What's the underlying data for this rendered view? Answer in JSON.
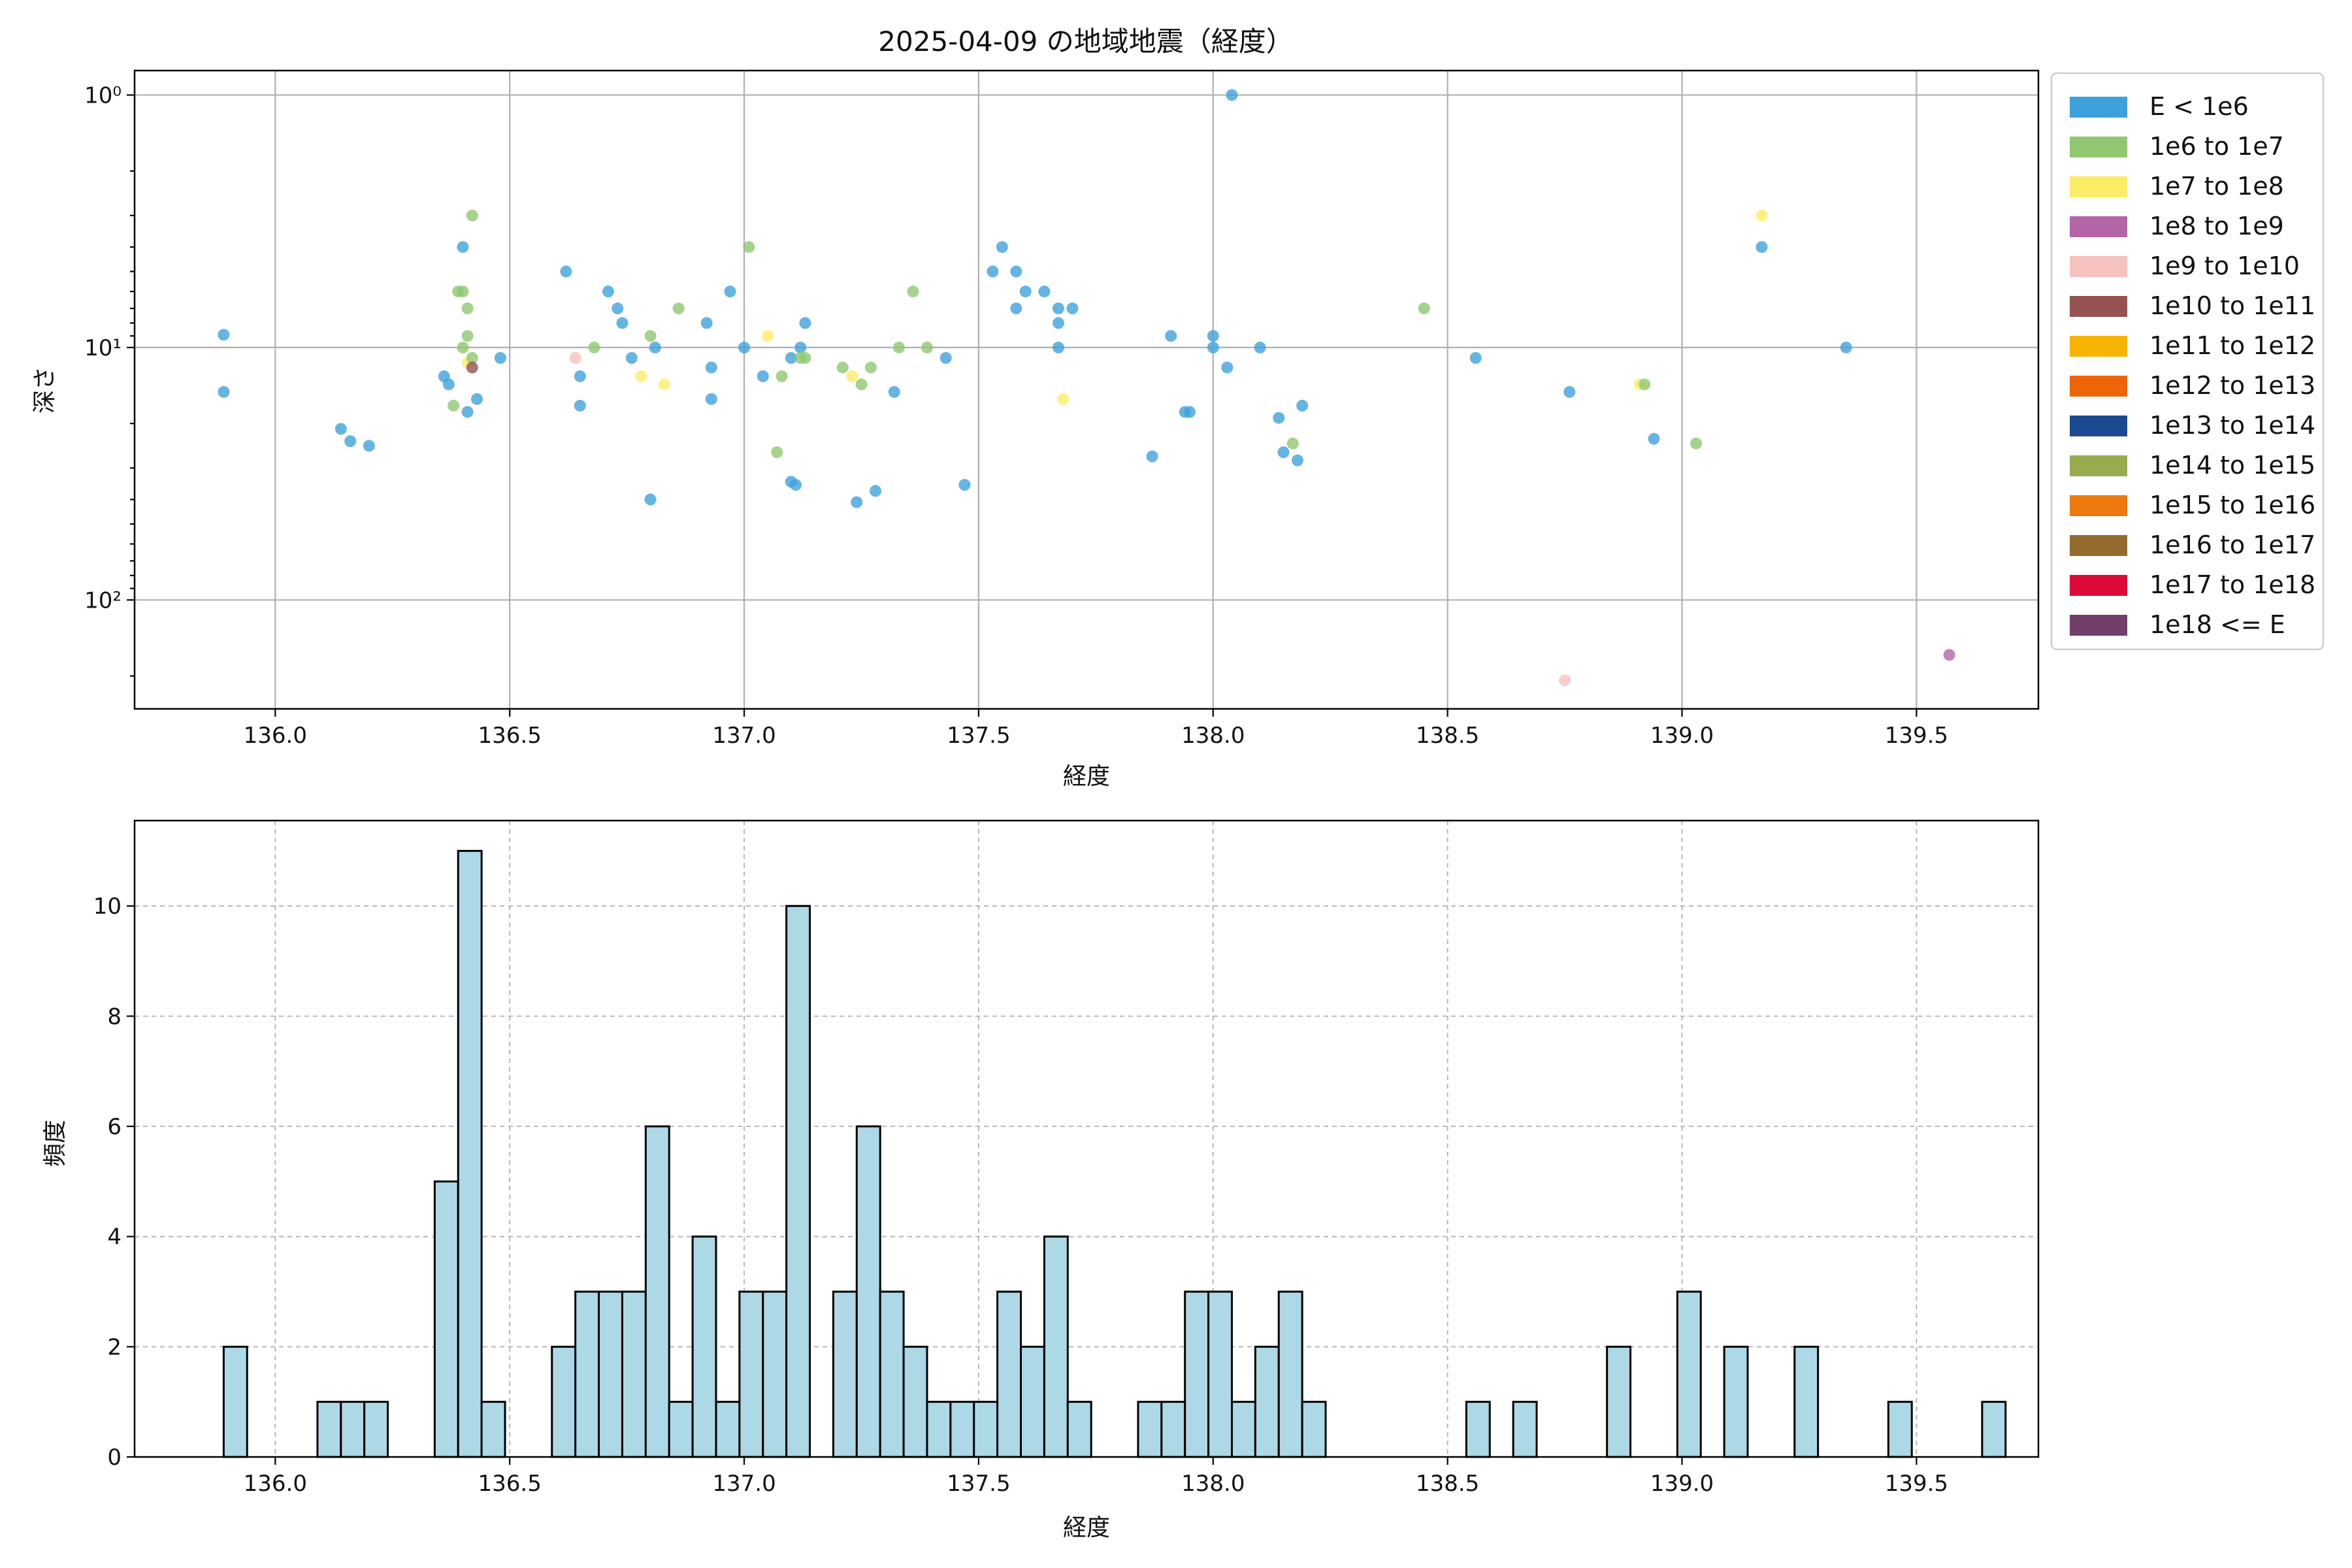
{
  "chart_data": [
    {
      "type": "scatter",
      "title": "2025-04-09 の地域地震（経度）",
      "xlabel": "経度",
      "ylabel": "深さ",
      "xlim": [
        135.7,
        139.76
      ],
      "ylim": [
        270,
        0.8
      ],
      "yscale": "log",
      "y_inverted": true,
      "grid": true,
      "x_ticks": [
        136.0,
        136.5,
        137.0,
        137.5,
        138.0,
        138.5,
        139.0,
        139.5
      ],
      "x_tick_labels": [
        "136.0",
        "136.5",
        "137.0",
        "137.5",
        "138.0",
        "138.5",
        "139.0",
        "139.5"
      ],
      "y_ticks": [
        1,
        10,
        100
      ],
      "y_tick_labels": [
        "10⁰",
        "10¹",
        "10²"
      ],
      "legend_position": "outside-right",
      "legend": [
        {
          "label": "E < 1e6",
          "color": "#3fa1db"
        },
        {
          "label": "1e6 to 1e7",
          "color": "#8fc870"
        },
        {
          "label": "1e7 to 1e8",
          "color": "#fced66"
        },
        {
          "label": "1e8 to 1e9",
          "color": "#b565a7"
        },
        {
          "label": "1e9 to 1e10",
          "color": "#f5c2bd"
        },
        {
          "label": "1e10 to 1e11",
          "color": "#955251"
        },
        {
          "label": "1e11 to 1e12",
          "color": "#f7b404"
        },
        {
          "label": "1e12 to 1e13",
          "color": "#ed6508"
        },
        {
          "label": "1e13 to 1e14",
          "color": "#1b4a91"
        },
        {
          "label": "1e14 to 1e15",
          "color": "#98ab4f"
        },
        {
          "label": "1e15 to 1e16",
          "color": "#ee7a0e"
        },
        {
          "label": "1e16 to 1e17",
          "color": "#946b2d"
        },
        {
          "label": "1e17 to 1e18",
          "color": "#dd0a3a"
        },
        {
          "label": "1e18 <= E",
          "color": "#713f6a"
        }
      ],
      "points": [
        {
          "x": 135.89,
          "y": 8.9,
          "c": 0
        },
        {
          "x": 135.89,
          "y": 15,
          "c": 0
        },
        {
          "x": 136.14,
          "y": 21,
          "c": 0
        },
        {
          "x": 136.16,
          "y": 23.5,
          "c": 0
        },
        {
          "x": 136.2,
          "y": 24.5,
          "c": 0
        },
        {
          "x": 136.36,
          "y": 13,
          "c": 0
        },
        {
          "x": 136.37,
          "y": 14,
          "c": 0
        },
        {
          "x": 136.38,
          "y": 17,
          "c": 1
        },
        {
          "x": 136.39,
          "y": 6,
          "c": 1
        },
        {
          "x": 136.4,
          "y": 6,
          "c": 1
        },
        {
          "x": 136.4,
          "y": 10,
          "c": 1
        },
        {
          "x": 136.4,
          "y": 4,
          "c": 0
        },
        {
          "x": 136.41,
          "y": 11.5,
          "c": 2
        },
        {
          "x": 136.41,
          "y": 18,
          "c": 0
        },
        {
          "x": 136.42,
          "y": 3,
          "c": 1
        },
        {
          "x": 136.41,
          "y": 7,
          "c": 1
        },
        {
          "x": 136.41,
          "y": 9,
          "c": 1
        },
        {
          "x": 136.42,
          "y": 11,
          "c": 1
        },
        {
          "x": 136.42,
          "y": 12,
          "c": 5
        },
        {
          "x": 136.43,
          "y": 16,
          "c": 0
        },
        {
          "x": 136.48,
          "y": 11,
          "c": 0
        },
        {
          "x": 136.62,
          "y": 5,
          "c": 0
        },
        {
          "x": 136.64,
          "y": 11,
          "c": 4
        },
        {
          "x": 136.65,
          "y": 13,
          "c": 0
        },
        {
          "x": 136.65,
          "y": 17,
          "c": 0
        },
        {
          "x": 136.68,
          "y": 10,
          "c": 1
        },
        {
          "x": 136.71,
          "y": 6,
          "c": 0
        },
        {
          "x": 136.73,
          "y": 7,
          "c": 0
        },
        {
          "x": 136.74,
          "y": 8,
          "c": 0
        },
        {
          "x": 136.76,
          "y": 11,
          "c": 0
        },
        {
          "x": 136.78,
          "y": 13,
          "c": 2
        },
        {
          "x": 136.8,
          "y": 9,
          "c": 1
        },
        {
          "x": 136.8,
          "y": 40,
          "c": 0
        },
        {
          "x": 136.81,
          "y": 10,
          "c": 0
        },
        {
          "x": 136.83,
          "y": 14,
          "c": 2
        },
        {
          "x": 136.86,
          "y": 7,
          "c": 1
        },
        {
          "x": 136.92,
          "y": 8,
          "c": 0
        },
        {
          "x": 136.93,
          "y": 12,
          "c": 0
        },
        {
          "x": 136.93,
          "y": 16,
          "c": 0
        },
        {
          "x": 136.97,
          "y": 6,
          "c": 0
        },
        {
          "x": 137.0,
          "y": 10,
          "c": 0
        },
        {
          "x": 137.01,
          "y": 4,
          "c": 1
        },
        {
          "x": 137.04,
          "y": 13,
          "c": 0
        },
        {
          "x": 137.05,
          "y": 9,
          "c": 2
        },
        {
          "x": 137.07,
          "y": 26,
          "c": 1
        },
        {
          "x": 137.08,
          "y": 13,
          "c": 1
        },
        {
          "x": 137.1,
          "y": 11,
          "c": 0
        },
        {
          "x": 137.1,
          "y": 34,
          "c": 0
        },
        {
          "x": 137.11,
          "y": 35,
          "c": 0
        },
        {
          "x": 137.12,
          "y": 10,
          "c": 0
        },
        {
          "x": 137.12,
          "y": 11,
          "c": 1
        },
        {
          "x": 137.13,
          "y": 8,
          "c": 0
        },
        {
          "x": 137.13,
          "y": 11,
          "c": 1
        },
        {
          "x": 137.21,
          "y": 12,
          "c": 1
        },
        {
          "x": 137.23,
          "y": 13,
          "c": 2
        },
        {
          "x": 137.24,
          "y": 41,
          "c": 0
        },
        {
          "x": 137.25,
          "y": 14,
          "c": 1
        },
        {
          "x": 137.27,
          "y": 12,
          "c": 1
        },
        {
          "x": 137.28,
          "y": 37,
          "c": 0
        },
        {
          "x": 137.32,
          "y": 15,
          "c": 0
        },
        {
          "x": 137.33,
          "y": 10,
          "c": 1
        },
        {
          "x": 137.36,
          "y": 6,
          "c": 1
        },
        {
          "x": 137.39,
          "y": 10,
          "c": 1
        },
        {
          "x": 137.43,
          "y": 11,
          "c": 0
        },
        {
          "x": 137.47,
          "y": 35,
          "c": 0
        },
        {
          "x": 137.53,
          "y": 5,
          "c": 0
        },
        {
          "x": 137.55,
          "y": 4,
          "c": 0
        },
        {
          "x": 137.58,
          "y": 5,
          "c": 0
        },
        {
          "x": 137.58,
          "y": 7,
          "c": 0
        },
        {
          "x": 137.6,
          "y": 6,
          "c": 0
        },
        {
          "x": 137.64,
          "y": 6,
          "c": 0
        },
        {
          "x": 137.67,
          "y": 7,
          "c": 0
        },
        {
          "x": 137.67,
          "y": 8,
          "c": 0
        },
        {
          "x": 137.67,
          "y": 10,
          "c": 0
        },
        {
          "x": 137.68,
          "y": 16,
          "c": 2
        },
        {
          "x": 137.7,
          "y": 7,
          "c": 0
        },
        {
          "x": 137.87,
          "y": 27,
          "c": 0
        },
        {
          "x": 137.91,
          "y": 9,
          "c": 0
        },
        {
          "x": 137.94,
          "y": 18,
          "c": 0
        },
        {
          "x": 137.95,
          "y": 18,
          "c": 0
        },
        {
          "x": 138.0,
          "y": 9,
          "c": 0
        },
        {
          "x": 138.0,
          "y": 10,
          "c": 0
        },
        {
          "x": 138.03,
          "y": 12,
          "c": 0
        },
        {
          "x": 138.04,
          "y": 1,
          "c": 0
        },
        {
          "x": 138.1,
          "y": 10,
          "c": 0
        },
        {
          "x": 138.14,
          "y": 19,
          "c": 0
        },
        {
          "x": 138.15,
          "y": 26,
          "c": 0
        },
        {
          "x": 138.17,
          "y": 24,
          "c": 1
        },
        {
          "x": 138.18,
          "y": 28,
          "c": 0
        },
        {
          "x": 138.19,
          "y": 17,
          "c": 0
        },
        {
          "x": 138.45,
          "y": 7,
          "c": 1
        },
        {
          "x": 138.56,
          "y": 11,
          "c": 0
        },
        {
          "x": 138.75,
          "y": 208,
          "c": 4
        },
        {
          "x": 138.76,
          "y": 15,
          "c": 0
        },
        {
          "x": 138.91,
          "y": 14,
          "c": 2
        },
        {
          "x": 138.92,
          "y": 14,
          "c": 1
        },
        {
          "x": 138.94,
          "y": 23,
          "c": 0
        },
        {
          "x": 139.03,
          "y": 24,
          "c": 1
        },
        {
          "x": 139.17,
          "y": 3,
          "c": 2
        },
        {
          "x": 139.17,
          "y": 4,
          "c": 0
        },
        {
          "x": 139.35,
          "y": 10,
          "c": 0
        },
        {
          "x": 139.57,
          "y": 165,
          "c": 3
        }
      ]
    },
    {
      "type": "bar",
      "subtype": "histogram",
      "xlabel": "経度",
      "ylabel": "頻度",
      "xlim": [
        135.7,
        139.76
      ],
      "ylim": [
        0,
        11.55
      ],
      "grid": true,
      "bar_color": "#add8e6",
      "x_ticks": [
        136.0,
        136.5,
        137.0,
        137.5,
        138.0,
        138.5,
        139.0,
        139.5
      ],
      "x_tick_labels": [
        "136.0",
        "136.5",
        "137.0",
        "137.5",
        "138.0",
        "138.5",
        "139.0",
        "139.5"
      ],
      "y_ticks": [
        0,
        2,
        4,
        6,
        8,
        10
      ],
      "y_tick_labels": [
        "0",
        "2",
        "4",
        "6",
        "8",
        "10"
      ],
      "bin_start": 135.89,
      "bin_width": 0.05,
      "counts": [
        2,
        0,
        0,
        0,
        1,
        1,
        1,
        0,
        0,
        5,
        11,
        1,
        0,
        0,
        2,
        3,
        3,
        3,
        6,
        1,
        4,
        1,
        3,
        3,
        10,
        0,
        3,
        6,
        3,
        2,
        1,
        1,
        1,
        3,
        2,
        4,
        1,
        0,
        0,
        1,
        1,
        3,
        3,
        1,
        2,
        3,
        1,
        0,
        0,
        0,
        0,
        0,
        0,
        1,
        0,
        1,
        0,
        0,
        0,
        2,
        0,
        0,
        3,
        0,
        2,
        0,
        0,
        2,
        0,
        0,
        0,
        1,
        0,
        0,
        0,
        1
      ]
    }
  ]
}
